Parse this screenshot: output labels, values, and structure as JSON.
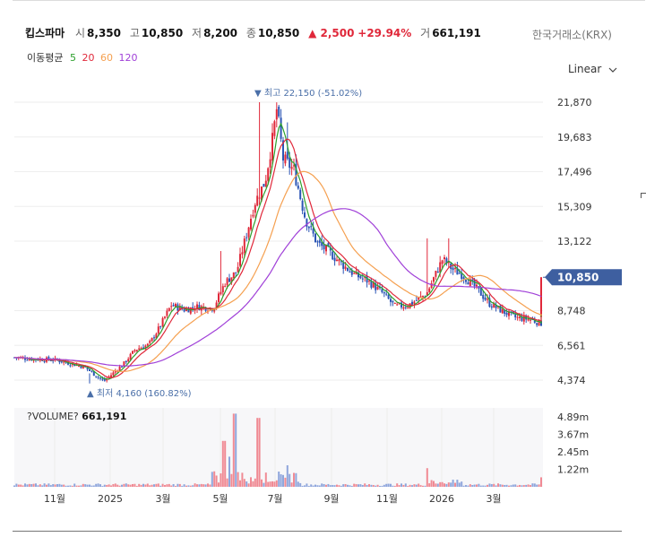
{
  "stock": {
    "name": "킵스파마",
    "open_label": "시",
    "open": "8,350",
    "high_label": "고",
    "high": "10,850",
    "low_label": "저",
    "low": "8,200",
    "close_label": "종",
    "close": "10,850",
    "change": "▲ 2,500",
    "change_pct": "+29.94%",
    "volume_label": "거",
    "volume": "661,191"
  },
  "exchange": "한국거래소(KRX)",
  "scale_mode": "Linear",
  "moving_average": {
    "label": "이동평균",
    "periods": [
      {
        "period": "5",
        "color": "#2ca02c"
      },
      {
        "period": "20",
        "color": "#e0283a"
      },
      {
        "period": "60",
        "color": "#f5a050"
      },
      {
        "period": "120",
        "color": "#a040d8"
      }
    ]
  },
  "volume_panel": {
    "label": "?VOLUME?",
    "value": "661,191"
  },
  "colors": {
    "up": "#e0283a",
    "down": "#2b55b5",
    "accent": "#3e5fa0",
    "annotation": "#4a6fa8"
  },
  "chart_data": {
    "type": "candlestick",
    "y_ticks": [
      "21,870",
      "19,683",
      "17,496",
      "15,309",
      "13,122",
      "10,850",
      "8,748",
      "6,561",
      "4,374"
    ],
    "current_price": "10,850",
    "x_ticks": [
      "11월",
      "2025",
      "3월",
      "5월",
      "7월",
      "9월",
      "11월",
      "2026",
      "3월"
    ],
    "high_annotation": "▼ 최고 22,150 (-51.02%)",
    "low_annotation": "▲ 최저 4,160 (160.82%)",
    "volume_ticks": [
      "4.89m",
      "3.67m",
      "2.45m",
      "1.22m"
    ],
    "price_range": [
      4374,
      21870
    ],
    "price_anchors": [
      [
        0,
        5800
      ],
      [
        20,
        5700
      ],
      [
        45,
        5650
      ],
      [
        60,
        5450
      ],
      [
        78,
        5200
      ],
      [
        90,
        4700
      ],
      [
        100,
        4300
      ],
      [
        112,
        4900
      ],
      [
        122,
        5400
      ],
      [
        135,
        6300
      ],
      [
        150,
        6600
      ],
      [
        162,
        7700
      ],
      [
        175,
        9100
      ],
      [
        190,
        8800
      ],
      [
        205,
        9000
      ],
      [
        222,
        8900
      ],
      [
        235,
        10500
      ],
      [
        248,
        11200
      ],
      [
        258,
        13300
      ],
      [
        268,
        15500
      ],
      [
        280,
        16900
      ],
      [
        288,
        19500
      ],
      [
        293,
        21500
      ],
      [
        300,
        18300
      ],
      [
        312,
        17600
      ],
      [
        325,
        14500
      ],
      [
        338,
        13000
      ],
      [
        352,
        12400
      ],
      [
        365,
        11700
      ],
      [
        380,
        11000
      ],
      [
        395,
        10600
      ],
      [
        410,
        9900
      ],
      [
        425,
        9000
      ],
      [
        440,
        9100
      ],
      [
        460,
        9800
      ],
      [
        478,
        12000
      ],
      [
        490,
        11300
      ],
      [
        500,
        11000
      ],
      [
        515,
        10200
      ],
      [
        530,
        9200
      ],
      [
        545,
        8700
      ],
      [
        560,
        8300
      ],
      [
        575,
        8200
      ],
      [
        590,
        7900
      ],
      [
        598,
        8200
      ],
      [
        606,
        10850
      ]
    ],
    "volume_range": [
      0,
      5500000
    ]
  }
}
